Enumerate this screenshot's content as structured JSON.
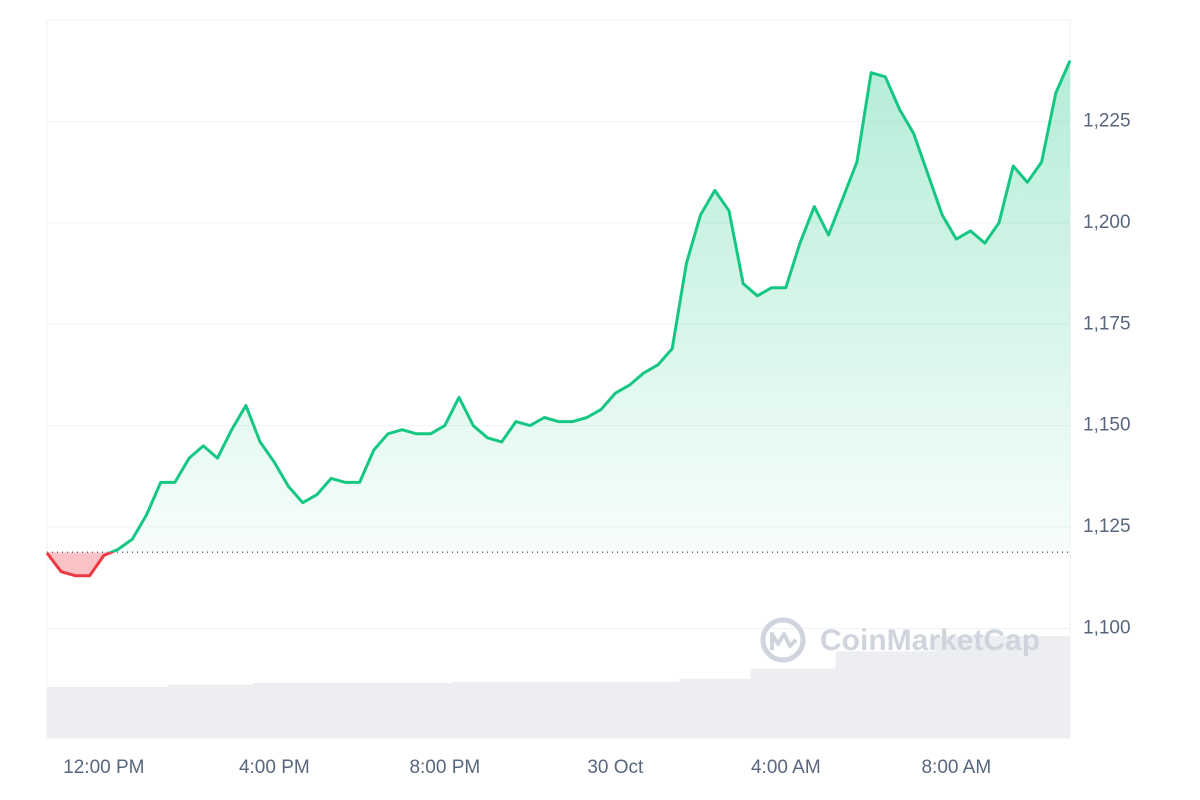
{
  "chart_data": {
    "type": "line",
    "watermark": "CoinMarketCap",
    "categories": [
      null,
      null,
      null,
      null,
      "12:00 PM",
      null,
      null,
      null,
      null,
      null,
      null,
      null,
      null,
      null,
      null,
      null,
      "4:00 PM",
      null,
      null,
      null,
      null,
      null,
      null,
      null,
      null,
      null,
      null,
      null,
      "8:00 PM",
      null,
      null,
      null,
      null,
      null,
      null,
      null,
      null,
      null,
      null,
      null,
      "30 Oct",
      null,
      null,
      null,
      null,
      null,
      null,
      null,
      null,
      null,
      null,
      null,
      "4:00 AM",
      null,
      null,
      null,
      null,
      null,
      null,
      null,
      null,
      null,
      null,
      null,
      "8:00 AM",
      null,
      null,
      null,
      null,
      null,
      null,
      null,
      null
    ],
    "values": [
      1118.6,
      1114,
      1113,
      1113,
      1118,
      1119.5,
      1122,
      1128,
      1136,
      1136,
      1142,
      1145,
      1142,
      1149,
      1155,
      1146,
      1141,
      1135,
      1131,
      1133,
      1137,
      1136,
      1136,
      1144,
      1148,
      1149,
      1148,
      1148,
      1150,
      1157,
      1150,
      1147,
      1146,
      1151,
      1150,
      1152,
      1151,
      1151,
      1152,
      1154,
      1158,
      1160,
      1163,
      1165,
      1169,
      1190,
      1202,
      1208,
      1203,
      1185,
      1182,
      1184,
      1184,
      1195,
      1204,
      1197,
      1206,
      1215,
      1237,
      1236,
      1228,
      1222,
      1212,
      1202,
      1196,
      1198,
      1195,
      1200,
      1214,
      1210,
      1215,
      1232,
      1240
    ],
    "volume": [
      50,
      50,
      50,
      50,
      50,
      50,
      50,
      50,
      50,
      52,
      52,
      52,
      52,
      52,
      52,
      54,
      54,
      54,
      54,
      54,
      54,
      54,
      54,
      54,
      54,
      54,
      54,
      54,
      54,
      55,
      55,
      55,
      55,
      55,
      55,
      55,
      55,
      55,
      55,
      55,
      55,
      55,
      55,
      55,
      55,
      58,
      58,
      58,
      58,
      58,
      68,
      68,
      68,
      68,
      68,
      68,
      85,
      85,
      85,
      85,
      85,
      85,
      85,
      100,
      100,
      100,
      100,
      100,
      100,
      100,
      100,
      100,
      100
    ],
    "baseline": 1118.8,
    "up_color": "#16c784",
    "down_color": "#ea3943",
    "volume_color": "#eceef2",
    "ylim": [
      1073,
      1250
    ],
    "yticks": [
      {
        "value": 1100,
        "label": "1,100"
      },
      {
        "value": 1125,
        "label": "1,125"
      },
      {
        "value": 1150,
        "label": "1,150"
      },
      {
        "value": 1175,
        "label": "1,175"
      },
      {
        "value": 1200,
        "label": "1,200"
      },
      {
        "value": 1225,
        "label": "1,225"
      }
    ],
    "grid": true
  }
}
